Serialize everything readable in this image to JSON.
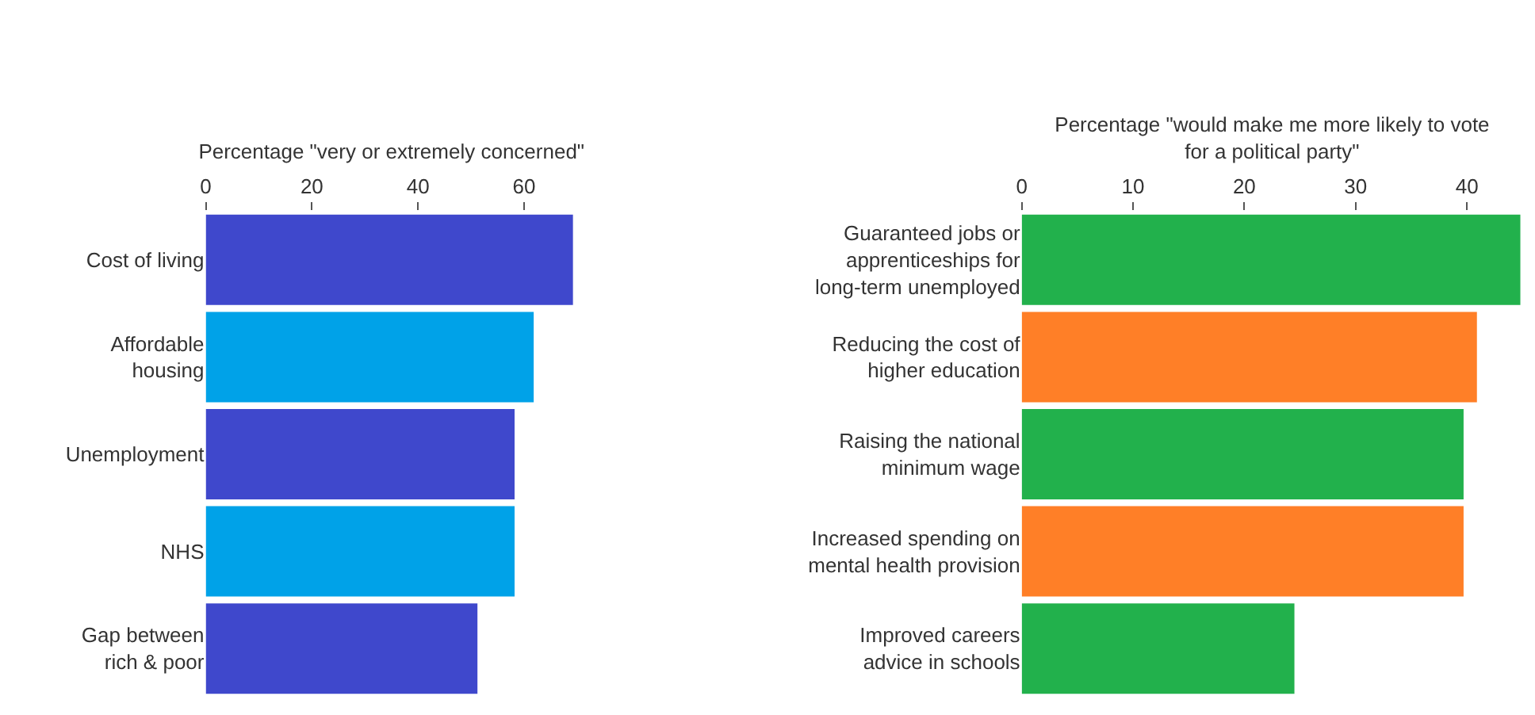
{
  "chart_data": [
    {
      "type": "bar",
      "orientation": "horizontal",
      "xlabel": "Percentage \"very or extremely concerned\"",
      "categories": [
        "Cost of living",
        "Affordable\nhousing",
        "Unemployment",
        "NHS",
        "Gap between\nrich & poor"
      ],
      "values": [
        69.2,
        61.8,
        58.2,
        58.2,
        51.2
      ],
      "colors": [
        "#3f48cc",
        "#00a2e8",
        "#3f48cc",
        "#00a2e8",
        "#3f48cc"
      ],
      "xlim": [
        0,
        70
      ],
      "xticks": [
        0,
        20,
        40,
        60
      ]
    },
    {
      "type": "bar",
      "orientation": "horizontal",
      "xlabel": "Percentage \"would make me more likely to vote\nfor a political party\"",
      "categories": [
        "Guaranteed jobs or\napprenticeships for\nlong-term unemployed",
        "Reducing the cost of\nhigher education",
        "Raising the national\nminimum wage",
        "Increased spending on\nmental health provision",
        "Improved careers\nadvice in schools"
      ],
      "values": [
        44.8,
        40.9,
        39.7,
        39.7,
        24.5
      ],
      "colors": [
        "#22b14c",
        "#ff7f27",
        "#22b14c",
        "#ff7f27",
        "#22b14c"
      ],
      "xlim": [
        0,
        45
      ],
      "xticks": [
        0,
        10,
        20,
        30,
        40
      ]
    }
  ]
}
